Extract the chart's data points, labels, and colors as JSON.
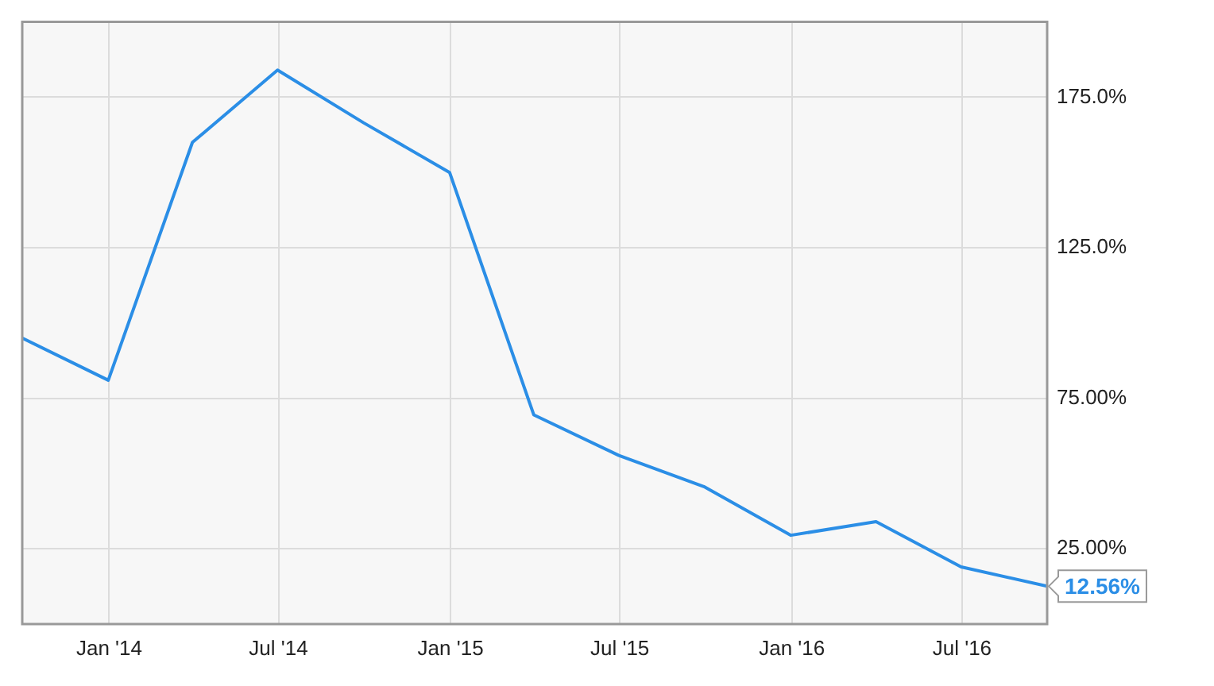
{
  "chart_data": {
    "type": "line",
    "x": [
      "2013-09-30",
      "2013-12-31",
      "2014-03-31",
      "2014-06-30",
      "2014-09-30",
      "2014-12-31",
      "2015-03-31",
      "2015-06-30",
      "2015-09-30",
      "2015-12-31",
      "2016-03-31",
      "2016-06-30",
      "2016-09-30"
    ],
    "series": [
      {
        "color": "#2b8ee6",
        "values": [
          95,
          81,
          160,
          184,
          166.5,
          150,
          69.5,
          56,
          45.5,
          29.5,
          34,
          19,
          12.56
        ]
      }
    ],
    "xlim": [
      "2013-09-30",
      "2016-09-30"
    ],
    "xticks": [
      {
        "value": "2014-01-01",
        "label": "Jan '14"
      },
      {
        "value": "2014-07-01",
        "label": "Jul '14"
      },
      {
        "value": "2015-01-01",
        "label": "Jan '15"
      },
      {
        "value": "2015-07-01",
        "label": "Jul '15"
      },
      {
        "value": "2016-01-01",
        "label": "Jan '16"
      },
      {
        "value": "2016-07-01",
        "label": "Jul '16"
      }
    ],
    "ylim": [
      0,
      200
    ],
    "yticks": [
      {
        "value": 25,
        "label": "25.00%"
      },
      {
        "value": 75,
        "label": "75.00%"
      },
      {
        "value": 125,
        "label": "125.0%"
      },
      {
        "value": 175,
        "label": "175.0%"
      }
    ],
    "annotations": [
      {
        "text": "12.56%",
        "x": "2016-09-30",
        "y": 12.56
      }
    ],
    "grid": true,
    "legend": false,
    "marker": "none",
    "line_style": "solid"
  }
}
